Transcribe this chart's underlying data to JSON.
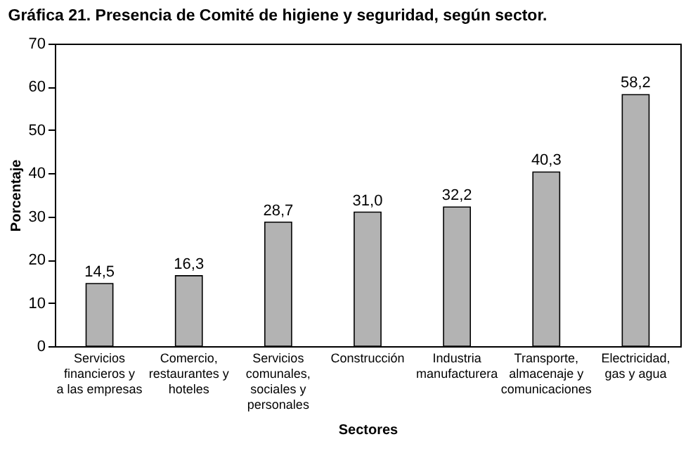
{
  "chart_data": {
    "type": "bar",
    "title": "Gráfica 21. Presencia de Comité de higiene y seguridad, según sector.",
    "xlabel": "Sectores",
    "ylabel": "Porcentaje",
    "categories": [
      "Servicios financieros y a las empresas",
      "Comercio, restaurantes y hoteles",
      "Servicios comunales, sociales y personales",
      "Construcción",
      "Industria manufacturera",
      "Transporte, almacenaje y comunicaciones",
      "Electricidad, gas y agua"
    ],
    "values": [
      14.5,
      16.3,
      28.7,
      31.0,
      32.2,
      40.3,
      58.2
    ],
    "value_labels": [
      "14,5",
      "16,3",
      "28,7",
      "31,0",
      "32,2",
      "40,3",
      "58,2"
    ],
    "color": "#b3b3b3",
    "ylim": [
      0,
      70
    ],
    "yticks": [
      0,
      10,
      20,
      30,
      40,
      50,
      60,
      70
    ],
    "grid": false
  }
}
